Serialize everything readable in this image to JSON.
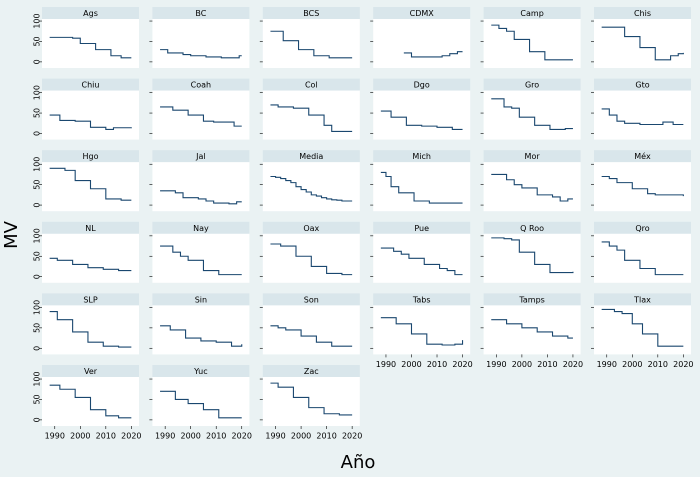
{
  "chart_data": {
    "type": "line",
    "step": true,
    "color": "#1a476f",
    "xlabel": "Año",
    "ylabel": "MV",
    "xlim": [
      1985,
      2023
    ],
    "ylim": [
      -15,
      105
    ],
    "xticks": [
      1990,
      2000,
      2010,
      2020
    ],
    "yticks": [
      0,
      50,
      100
    ],
    "panels": [
      {
        "title": "Ags",
        "x": [
          1988,
          1997,
          2000,
          2006,
          2012,
          2016,
          2020
        ],
        "values": [
          60,
          58,
          45,
          30,
          15,
          10,
          10
        ]
      },
      {
        "title": "BC",
        "x": [
          1988,
          1991,
          1997,
          2000,
          2006,
          2012,
          2019,
          2020
        ],
        "values": [
          30,
          22,
          18,
          15,
          12,
          10,
          15,
          15
        ]
      },
      {
        "title": "BCS",
        "x": [
          1988,
          1993,
          1999,
          2005,
          2011,
          2020
        ],
        "values": [
          75,
          52,
          30,
          15,
          10,
          10
        ]
      },
      {
        "title": "CDMX",
        "x": [
          1997,
          2000,
          2006,
          2012,
          2015,
          2018,
          2020
        ],
        "values": [
          22,
          12,
          12,
          15,
          20,
          25,
          25
        ]
      },
      {
        "title": "Camp",
        "x": [
          1988,
          1991,
          1994,
          1997,
          2003,
          2009,
          2020
        ],
        "values": [
          90,
          82,
          75,
          55,
          25,
          5,
          5
        ]
      },
      {
        "title": "Chis",
        "x": [
          1988,
          1994,
          1997,
          2003,
          2009,
          2015,
          2018,
          2020
        ],
        "values": [
          85,
          85,
          62,
          35,
          5,
          15,
          20,
          22
        ]
      },
      {
        "title": "Chiu",
        "x": [
          1988,
          1992,
          1998,
          2004,
          2010,
          2013,
          2020
        ],
        "values": [
          45,
          32,
          30,
          15,
          10,
          14,
          15
        ]
      },
      {
        "title": "Coah",
        "x": [
          1988,
          1993,
          1999,
          2005,
          2009,
          2017,
          2020
        ],
        "values": [
          65,
          57,
          45,
          30,
          28,
          18,
          18
        ]
      },
      {
        "title": "Col",
        "x": [
          1988,
          1991,
          1997,
          2003,
          2009,
          2012,
          2020
        ],
        "values": [
          70,
          65,
          62,
          45,
          20,
          5,
          5
        ]
      },
      {
        "title": "Dgo",
        "x": [
          1988,
          1992,
          1998,
          2004,
          2010,
          2016,
          2020
        ],
        "values": [
          55,
          40,
          20,
          18,
          15,
          10,
          10
        ]
      },
      {
        "title": "Gro",
        "x": [
          1988,
          1993,
          1996,
          1999,
          2005,
          2011,
          2017,
          2020
        ],
        "values": [
          85,
          65,
          62,
          40,
          20,
          10,
          12,
          12
        ]
      },
      {
        "title": "Gto",
        "x": [
          1988,
          1991,
          1994,
          1997,
          2003,
          2009,
          2012,
          2016,
          2020
        ],
        "values": [
          60,
          45,
          30,
          25,
          22,
          22,
          28,
          22,
          22
        ]
      },
      {
        "title": "Hgo",
        "x": [
          1988,
          1994,
          1998,
          2004,
          2010,
          2016,
          2020
        ],
        "values": [
          90,
          85,
          60,
          40,
          15,
          12,
          12
        ]
      },
      {
        "title": "Jal",
        "x": [
          1988,
          1994,
          1997,
          2003,
          2006,
          2009,
          2015,
          2018,
          2020
        ],
        "values": [
          35,
          30,
          18,
          15,
          10,
          5,
          3,
          8,
          8
        ]
      },
      {
        "title": "Media",
        "x": [
          1988,
          1990,
          1992,
          1994,
          1996,
          1998,
          2000,
          2002,
          2004,
          2006,
          2008,
          2010,
          2012,
          2014,
          2016,
          2018,
          2020
        ],
        "values": [
          70,
          68,
          65,
          60,
          55,
          45,
          38,
          32,
          25,
          22,
          18,
          15,
          13,
          12,
          10,
          10,
          10
        ]
      },
      {
        "title": "Mich",
        "x": [
          1988,
          1990,
          1992,
          1995,
          2001,
          2007,
          2013,
          2020
        ],
        "values": [
          80,
          70,
          45,
          30,
          10,
          5,
          5,
          5
        ]
      },
      {
        "title": "Mor",
        "x": [
          1988,
          1994,
          1997,
          2000,
          2006,
          2012,
          2015,
          2018,
          2020
        ],
        "values": [
          75,
          62,
          50,
          42,
          25,
          20,
          10,
          15,
          15
        ]
      },
      {
        "title": "Méx",
        "x": [
          1988,
          1991,
          1994,
          2000,
          2006,
          2009,
          2015,
          2020
        ],
        "values": [
          70,
          65,
          55,
          40,
          28,
          25,
          25,
          22
        ]
      },
      {
        "title": "NL",
        "x": [
          1988,
          1991,
          1997,
          2003,
          2009,
          2015,
          2020
        ],
        "values": [
          45,
          40,
          30,
          22,
          18,
          15,
          15
        ]
      },
      {
        "title": "Nay",
        "x": [
          1988,
          1993,
          1996,
          1999,
          2005,
          2011,
          2017,
          2020
        ],
        "values": [
          75,
          60,
          50,
          40,
          15,
          5,
          5,
          5
        ]
      },
      {
        "title": "Oax",
        "x": [
          1988,
          1992,
          1998,
          2004,
          2010,
          2016,
          2020
        ],
        "values": [
          80,
          75,
          50,
          25,
          8,
          5,
          5
        ]
      },
      {
        "title": "Pue",
        "x": [
          1988,
          1993,
          1996,
          1999,
          2005,
          2011,
          2014,
          2017,
          2020
        ],
        "values": [
          70,
          62,
          55,
          45,
          30,
          20,
          15,
          5,
          5
        ]
      },
      {
        "title": "Q Roo",
        "x": [
          1988,
          1993,
          1996,
          1999,
          2005,
          2011,
          2020
        ],
        "values": [
          95,
          93,
          90,
          60,
          30,
          10,
          12
        ]
      },
      {
        "title": "Qro",
        "x": [
          1988,
          1991,
          1994,
          1997,
          2003,
          2009,
          2015,
          2020
        ],
        "values": [
          85,
          75,
          65,
          40,
          20,
          5,
          5,
          5
        ]
      },
      {
        "title": "SLP",
        "x": [
          1988,
          1991,
          1997,
          2003,
          2009,
          2015,
          2020
        ],
        "values": [
          90,
          70,
          40,
          15,
          5,
          3,
          3
        ]
      },
      {
        "title": "Sin",
        "x": [
          1988,
          1992,
          1998,
          2004,
          2010,
          2016,
          2020
        ],
        "values": [
          55,
          45,
          25,
          18,
          15,
          5,
          10
        ]
      },
      {
        "title": "Son",
        "x": [
          1988,
          1991,
          1994,
          2000,
          2006,
          2012,
          2020
        ],
        "values": [
          55,
          50,
          45,
          30,
          15,
          5,
          5
        ]
      },
      {
        "title": "Tabs",
        "x": [
          1988,
          1994,
          2000,
          2006,
          2012,
          2017,
          2020
        ],
        "values": [
          75,
          60,
          35,
          10,
          8,
          10,
          20
        ]
      },
      {
        "title": "Tamps",
        "x": [
          1988,
          1994,
          2000,
          2006,
          2012,
          2018,
          2020
        ],
        "values": [
          70,
          60,
          50,
          40,
          30,
          25,
          25
        ]
      },
      {
        "title": "Tlax",
        "x": [
          1988,
          1993,
          1996,
          2000,
          2004,
          2010,
          2016,
          2020
        ],
        "values": [
          95,
          90,
          85,
          60,
          35,
          5,
          5,
          5
        ]
      },
      {
        "title": "Ver",
        "x": [
          1988,
          1992,
          1998,
          2004,
          2010,
          2015,
          2020
        ],
        "values": [
          85,
          75,
          55,
          25,
          10,
          5,
          5
        ]
      },
      {
        "title": "Yuc",
        "x": [
          1988,
          1994,
          1999,
          2005,
          2011,
          2017,
          2020
        ],
        "values": [
          70,
          50,
          40,
          25,
          5,
          5,
          5
        ]
      },
      {
        "title": "Zac",
        "x": [
          1988,
          1991,
          1997,
          2003,
          2009,
          2015,
          2020
        ],
        "values": [
          90,
          80,
          55,
          30,
          15,
          12,
          12
        ]
      }
    ]
  }
}
